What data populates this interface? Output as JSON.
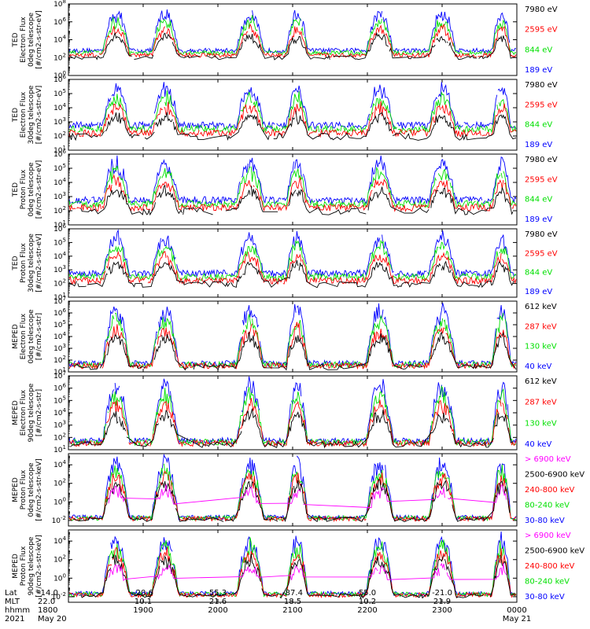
{
  "colors": {
    "blue": "#0000ff",
    "red": "#ff0000",
    "green": "#00e000",
    "black": "#000000",
    "magenta": "#ff00ff"
  },
  "chart_data": {
    "type": "line",
    "x_unit": "hhmm",
    "x_range": [
      "1800",
      "0000"
    ],
    "panels": [
      {
        "ylabel": [
          "TED",
          "Electron Flux",
          "0deg telescope",
          "[#/cm2-s-str-eV]"
        ],
        "ytick_exponents": [
          0,
          2,
          4,
          6,
          8
        ],
        "ylim_exp": [
          0,
          8
        ],
        "legend": [
          {
            "label": "7980 eV",
            "color": "black"
          },
          {
            "label": "2595 eV",
            "color": "red"
          },
          {
            "label": "844 eV",
            "color": "green"
          },
          {
            "label": "189 eV",
            "color": "blue"
          }
        ]
      },
      {
        "ylabel": [
          "TED",
          "Electron Flux",
          "30deg telescope",
          "[#/cm2-s-str-eV]"
        ],
        "ytick_exponents": [
          1,
          2,
          3,
          4,
          5,
          6
        ],
        "ylim_exp": [
          1,
          6
        ],
        "legend": [
          {
            "label": "7980 eV",
            "color": "black"
          },
          {
            "label": "2595 eV",
            "color": "red"
          },
          {
            "label": "844 eV",
            "color": "green"
          },
          {
            "label": "189 eV",
            "color": "blue"
          }
        ]
      },
      {
        "ylabel": [
          "TED",
          "Proton Flux",
          "0deg telescope",
          "[#/cm2-s-str-eV]"
        ],
        "ytick_exponents": [
          1,
          2,
          3,
          4,
          5,
          6
        ],
        "ylim_exp": [
          1,
          6
        ],
        "legend": [
          {
            "label": "7980 eV",
            "color": "black"
          },
          {
            "label": "2595 eV",
            "color": "red"
          },
          {
            "label": "844 eV",
            "color": "green"
          },
          {
            "label": "189 eV",
            "color": "blue"
          }
        ]
      },
      {
        "ylabel": [
          "TED",
          "Proton Flux",
          "30deg telescope",
          "[#/cm2-s-str-eV]"
        ],
        "ytick_exponents": [
          1,
          2,
          3,
          4,
          5,
          6
        ],
        "ylim_exp": [
          1,
          6
        ],
        "legend": [
          {
            "label": "7980 eV",
            "color": "black"
          },
          {
            "label": "2595 eV",
            "color": "red"
          },
          {
            "label": "844 eV",
            "color": "green"
          },
          {
            "label": "189 eV",
            "color": "blue"
          }
        ]
      },
      {
        "ylabel": [
          "MEPED",
          "Electron Flux",
          "0deg telescope",
          "[#/cm2-s-str]"
        ],
        "ytick_exponents": [
          1,
          2,
          3,
          4,
          5,
          6,
          7
        ],
        "ylim_exp": [
          1,
          7
        ],
        "legend": [
          {
            "label": "612 keV",
            "color": "black"
          },
          {
            "label": "287 keV",
            "color": "red"
          },
          {
            "label": "130 keV",
            "color": "green"
          },
          {
            "label": "40 keV",
            "color": "blue"
          }
        ]
      },
      {
        "ylabel": [
          "MEPED",
          "Electron Flux",
          "90deg telescope",
          "[#/cm2-s-str]"
        ],
        "ytick_exponents": [
          1,
          2,
          3,
          4,
          5,
          6,
          7
        ],
        "ylim_exp": [
          1,
          7
        ],
        "legend": [
          {
            "label": "612 keV",
            "color": "black"
          },
          {
            "label": "287 keV",
            "color": "red"
          },
          {
            "label": "130 keV",
            "color": "green"
          },
          {
            "label": "40 keV",
            "color": "blue"
          }
        ]
      },
      {
        "ylabel": [
          "MEPED",
          "Proton Flux",
          "0deg telescope",
          "[#/cm2-s-str-keV]"
        ],
        "ytick_exponents": [
          -2,
          0,
          2,
          4
        ],
        "ylim_exp": [
          -2.6,
          5.2
        ],
        "legend": [
          {
            "label": "> 6900 keV",
            "color": "magenta"
          },
          {
            "label": "2500-6900 keV",
            "color": "black"
          },
          {
            "label": "240-800 keV",
            "color": "red"
          },
          {
            "label": "80-240 keV",
            "color": "green"
          },
          {
            "label": "30-80 keV",
            "color": "blue"
          }
        ]
      },
      {
        "ylabel": [
          "MEPED",
          "Proton Flux",
          "90deg telescope",
          "[#/cm2-s-str-keV]"
        ],
        "ytick_exponents": [
          -2,
          0,
          2,
          4
        ],
        "ylim_exp": [
          -2.6,
          5.2
        ],
        "legend": [
          {
            "label": "> 6900 keV",
            "color": "magenta"
          },
          {
            "label": "2500-6900 keV",
            "color": "black"
          },
          {
            "label": "240-800 keV",
            "color": "red"
          },
          {
            "label": "80-240 keV",
            "color": "green"
          },
          {
            "label": "30-80 keV",
            "color": "blue"
          }
        ]
      }
    ],
    "time_axis": {
      "row_labels": [
        "Lat",
        "MLT",
        "hhmm",
        "2021"
      ],
      "columns": [
        {
          "lat": "-14.0",
          "mlt": "22.0",
          "hhmm": "1800",
          "date": "May 20"
        },
        {
          "lat": "-20.6",
          "mlt": "10.1",
          "hhmm": "1900",
          "date": ""
        },
        {
          "lat": "55.3",
          "mlt": "21.6",
          "hhmm": "2000",
          "date": ""
        },
        {
          "lat": "-87.4",
          "mlt": "18.5",
          "hhmm": "2100",
          "date": ""
        },
        {
          "lat": "55.0",
          "mlt": "10.2",
          "hhmm": "2200",
          "date": ""
        },
        {
          "lat": "-21.0",
          "mlt": "21.9",
          "hhmm": "2300",
          "date": ""
        },
        {
          "lat": "",
          "mlt": "",
          "hhmm": "0000",
          "date": "May 21"
        }
      ]
    }
  }
}
